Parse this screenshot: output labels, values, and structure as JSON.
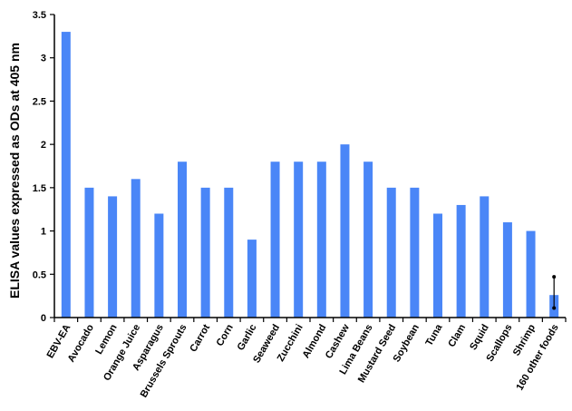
{
  "chart_data": {
    "type": "bar",
    "title": "",
    "xlabel": "",
    "ylabel": "ELISA values expressed as ODs at 405 nm",
    "ylim": [
      0,
      3.5
    ],
    "yticks": [
      "0",
      "0.5",
      "1",
      "1.5",
      "2",
      "2.5",
      "3",
      "3.5"
    ],
    "grid": false,
    "bar_color": "#4A86F7",
    "categories": [
      "EBV-EA",
      "Avocado",
      "Lemon",
      "Orange Juice",
      "Asparagus",
      "Brussels Sprouts",
      "Carrot",
      "Corn",
      "Garlic",
      "Seaweed",
      "Zucchini",
      "Almond",
      "Cashew",
      "Lima Beans",
      "Mustard Seed",
      "Soybean",
      "Tuna",
      "Clam",
      "Squid",
      "Scallops",
      "Shrimp",
      "160 other foods"
    ],
    "values": [
      3.3,
      1.5,
      1.4,
      1.6,
      1.2,
      1.8,
      1.5,
      1.5,
      0.9,
      1.8,
      1.8,
      1.8,
      2.0,
      1.8,
      1.5,
      1.5,
      1.2,
      1.3,
      1.4,
      1.1,
      1.0,
      0.26
    ],
    "error_bars": [
      {
        "category": "160 other foods",
        "low": 0.11,
        "high": 0.47
      }
    ]
  }
}
